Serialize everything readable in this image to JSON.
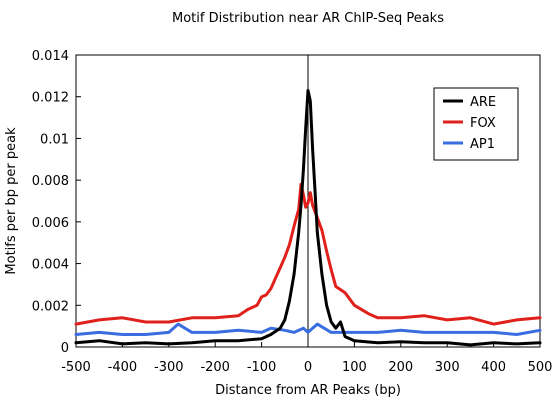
{
  "chart_data": {
    "type": "line",
    "title": "Motif Distribution near AR ChIP-Seq Peaks",
    "xlabel": "Distance from AR Peaks (bp)",
    "ylabel": "Motifs per bp per peak",
    "xlim": [
      -500,
      500
    ],
    "ylim": [
      0,
      0.014
    ],
    "xticks": [
      "-500",
      "-400",
      "-300",
      "-200",
      "-100",
      "0",
      "100",
      "200",
      "300",
      "400",
      "500"
    ],
    "yticks": [
      "0",
      "0.002",
      "0.004",
      "0.006",
      "0.008",
      "0.01",
      "0.012",
      "0.014"
    ],
    "grid": false,
    "legend_position": "top-right",
    "series": [
      {
        "name": "ARE",
        "color": "#000000",
        "x": [
          -500,
          -450,
          -400,
          -350,
          -300,
          -250,
          -200,
          -150,
          -100,
          -80,
          -60,
          -50,
          -40,
          -30,
          -20,
          -15,
          -10,
          -5,
          0,
          5,
          10,
          15,
          20,
          30,
          40,
          50,
          60,
          70,
          80,
          100,
          150,
          200,
          250,
          300,
          350,
          400,
          450,
          500
        ],
        "y": [
          0.0002,
          0.0003,
          0.00015,
          0.0002,
          0.00015,
          0.0002,
          0.0003,
          0.0003,
          0.0004,
          0.0006,
          0.0009,
          0.0013,
          0.0022,
          0.0035,
          0.0055,
          0.0068,
          0.0085,
          0.0105,
          0.0123,
          0.0118,
          0.0095,
          0.0075,
          0.0055,
          0.0035,
          0.002,
          0.0012,
          0.0009,
          0.0012,
          0.0005,
          0.0003,
          0.0002,
          0.00025,
          0.0002,
          0.0002,
          0.0001,
          0.0002,
          0.00015,
          0.0002
        ]
      },
      {
        "name": "FOX",
        "color": "#e0201b",
        "x": [
          -500,
          -450,
          -400,
          -350,
          -300,
          -250,
          -200,
          -150,
          -130,
          -110,
          -100,
          -90,
          -80,
          -70,
          -60,
          -50,
          -40,
          -30,
          -20,
          -15,
          -10,
          -5,
          0,
          5,
          10,
          15,
          20,
          30,
          40,
          50,
          60,
          80,
          100,
          130,
          150,
          200,
          250,
          300,
          350,
          400,
          450,
          500
        ],
        "y": [
          0.0011,
          0.0013,
          0.0014,
          0.0012,
          0.0012,
          0.0014,
          0.0014,
          0.0015,
          0.0018,
          0.002,
          0.0024,
          0.0025,
          0.0028,
          0.0033,
          0.0038,
          0.0043,
          0.0049,
          0.0058,
          0.0066,
          0.0078,
          0.0073,
          0.0067,
          0.0069,
          0.0074,
          0.0068,
          0.0065,
          0.0062,
          0.0056,
          0.0046,
          0.0037,
          0.0029,
          0.0026,
          0.002,
          0.0016,
          0.0014,
          0.0014,
          0.0015,
          0.0013,
          0.0014,
          0.0011,
          0.0013,
          0.0014
        ]
      },
      {
        "name": "AP1",
        "color": "#3a6de0",
        "x": [
          -500,
          -450,
          -400,
          -350,
          -300,
          -280,
          -250,
          -200,
          -150,
          -100,
          -80,
          -50,
          -30,
          -10,
          0,
          10,
          20,
          50,
          100,
          150,
          200,
          250,
          300,
          350,
          400,
          450,
          500
        ],
        "y": [
          0.0006,
          0.0007,
          0.0006,
          0.0006,
          0.0007,
          0.0011,
          0.0007,
          0.0007,
          0.0008,
          0.0007,
          0.0009,
          0.0008,
          0.0007,
          0.0009,
          0.0007,
          0.0009,
          0.0011,
          0.0007,
          0.0007,
          0.0007,
          0.0008,
          0.0007,
          0.0007,
          0.0007,
          0.0007,
          0.0006,
          0.0008
        ]
      }
    ]
  }
}
